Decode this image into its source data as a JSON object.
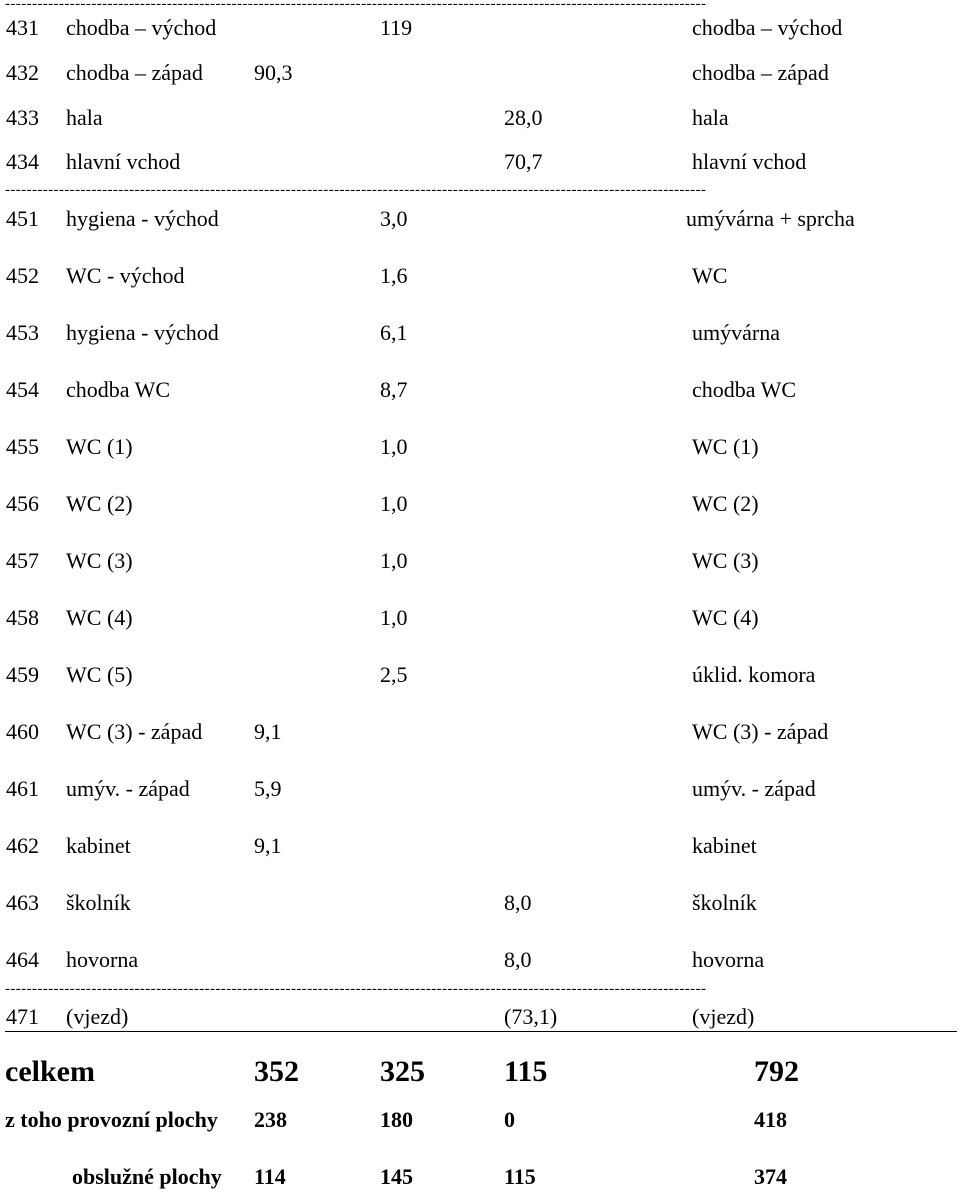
{
  "separator": "----------------------------------------------------------------------------------------------------------------------------------",
  "rows": [
    {
      "no": "431",
      "name": "chodba – východ",
      "c1": "",
      "c2": "119",
      "c3": "",
      "new_name": "chodba – východ"
    },
    {
      "no": "432",
      "name": "chodba – západ",
      "c1": "90,3",
      "c2": "",
      "c3": "",
      "new_name": "chodba – západ"
    },
    {
      "no": "433",
      "name": "hala",
      "c1": "",
      "c2": "",
      "c3": "28,0",
      "new_name": "hala"
    },
    {
      "no": "434",
      "name": "hlavní vchod",
      "c1": "",
      "c2": "",
      "c3": "70,7",
      "new_name": "hlavní vchod"
    },
    {
      "no": "451",
      "name": "hygiena - východ",
      "c1": "",
      "c2": "3,0",
      "c3": "",
      "new_name": "umývárna + sprcha"
    },
    {
      "no": "452",
      "name": "WC - východ",
      "c1": "",
      "c2": "1,6",
      "c3": "",
      "new_name": "WC"
    },
    {
      "no": "453",
      "name": "hygiena - východ",
      "c1": "",
      "c2": "6,1",
      "c3": "",
      "new_name": "umývárna"
    },
    {
      "no": "454",
      "name": "chodba WC",
      "c1": "",
      "c2": "8,7",
      "c3": "",
      "new_name": "chodba WC"
    },
    {
      "no": "455",
      "name": "WC (1)",
      "c1": "",
      "c2": "1,0",
      "c3": "",
      "new_name": "WC (1)"
    },
    {
      "no": "456",
      "name": "WC (2)",
      "c1": "",
      "c2": "1,0",
      "c3": "",
      "new_name": "WC (2)"
    },
    {
      "no": "457",
      "name": "WC (3)",
      "c1": "",
      "c2": "1,0",
      "c3": "",
      "new_name": "WC (3)"
    },
    {
      "no": "458",
      "name": "WC (4)",
      "c1": "",
      "c2": "1,0",
      "c3": "",
      "new_name": "WC (4)"
    },
    {
      "no": "459",
      "name": "WC (5)",
      "c1": "",
      "c2": "2,5",
      "c3": "",
      "new_name": "úklid. komora"
    },
    {
      "no": "460",
      "name": "WC (3) - západ",
      "c1": "9,1",
      "c2": "",
      "c3": "",
      "new_name": "WC (3) - západ"
    },
    {
      "no": "461",
      "name": "umýv. - západ",
      "c1": "5,9",
      "c2": "",
      "c3": "",
      "new_name": "umýv. - západ"
    },
    {
      "no": "462",
      "name": "kabinet",
      "c1": "9,1",
      "c2": "",
      "c3": "",
      "new_name": "kabinet"
    },
    {
      "no": "463",
      "name": "školník",
      "c1": "",
      "c2": "",
      "c3": "8,0",
      "new_name": "školník"
    },
    {
      "no": "464",
      "name": "hovorna",
      "c1": "",
      "c2": "",
      "c3": "8,0",
      "new_name": "hovorna"
    },
    {
      "no": "471",
      "name": "(vjezd)",
      "c1": "",
      "c2": "",
      "c3": "(73,1)",
      "new_name": "(vjezd)"
    }
  ],
  "summary": [
    {
      "label": "celkem",
      "c1": "352",
      "c2": "325",
      "c3": "115",
      "total": "792"
    },
    {
      "label": "z toho provozní plochy",
      "c1": "238",
      "c2": "180",
      "c3": "0",
      "total": "418"
    },
    {
      "label": "obslužné plochy",
      "c1": "114",
      "c2": "145",
      "c3": "115",
      "total": "374"
    }
  ]
}
